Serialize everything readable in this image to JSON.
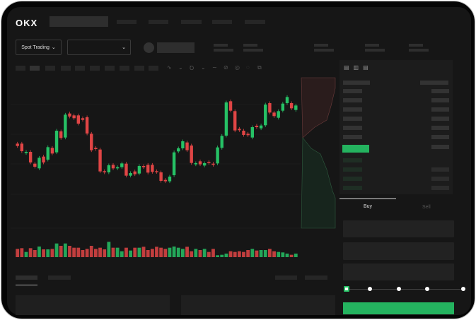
{
  "header": {
    "logo": "OKX"
  },
  "toolbar": {
    "market_selector": "Spot Trading",
    "pair_chevron": "chevron-down-icon"
  },
  "trade_panel": {
    "buy_tab": "Buy",
    "sell_tab": "Sell",
    "active_tab": "Buy",
    "leverage_steps": 5,
    "selected_step": 0
  },
  "colors": {
    "up": "#26c165",
    "down": "#e04545",
    "background": "#161616",
    "accent": "#24b35f"
  },
  "chart": {
    "candles": [
      [
        250,
        240
      ],
      [
        250,
        218
      ],
      [
        210,
        215
      ],
      [
        215,
        170
      ],
      [
        165,
        152
      ],
      [
        145,
        190
      ],
      [
        195,
        170
      ],
      [
        182,
        235
      ],
      [
        232,
        208
      ],
      [
        213,
        305
      ],
      [
        302,
        274
      ],
      [
        276,
        373
      ],
      [
        378,
        365
      ],
      [
        370,
        358
      ],
      [
        370,
        335
      ],
      [
        358,
        351
      ],
      [
        362,
        293
      ],
      [
        292,
        222
      ],
      [
        232,
        227
      ],
      [
        225,
        132
      ],
      [
        133,
        128
      ],
      [
        128,
        158
      ],
      [
        160,
        145
      ],
      [
        145,
        150
      ],
      [
        150,
        166
      ],
      [
        165,
        114
      ],
      [
        114,
        125
      ],
      [
        132,
        120
      ],
      [
        123,
        155
      ],
      [
        155,
        150
      ],
      [
        160,
        127
      ],
      [
        160,
        130
      ],
      [
        133,
        130
      ],
      [
        128,
        92
      ],
      [
        96,
        90
      ],
      [
        90,
        110
      ],
      [
        116,
        213
      ],
      [
        217,
        230
      ],
      [
        230,
        260
      ],
      [
        255,
        222
      ],
      [
        242,
        168
      ],
      [
        162,
        167
      ],
      [
        175,
        162
      ],
      [
        157,
        167
      ],
      [
        172,
        168
      ],
      [
        165,
        160
      ],
      [
        166,
        234
      ],
      [
        232,
        283
      ],
      [
        284,
        425
      ],
      [
        430,
        390
      ],
      [
        388,
        306
      ],
      [
        313,
        307
      ],
      [
        305,
        287
      ],
      [
        292,
        286
      ],
      [
        276,
        320
      ],
      [
        326,
        320
      ],
      [
        315,
        327
      ],
      [
        328,
        416
      ],
      [
        422,
        382
      ],
      [
        382,
        367
      ],
      [
        360,
        388
      ],
      [
        390,
        420
      ],
      [
        422,
        448
      ],
      [
        422,
        400
      ],
      [
        393,
        412
      ]
    ],
    "volumes": [
      35,
      38,
      22,
      38,
      30,
      45,
      33,
      33,
      35,
      58,
      48,
      58,
      48,
      40,
      40,
      30,
      35,
      48,
      35,
      40,
      33,
      65,
      40,
      40,
      25,
      40,
      28,
      40,
      40,
      44,
      30,
      35,
      44,
      40,
      35,
      40,
      45,
      40,
      35,
      44,
      25,
      35,
      30,
      35,
      22,
      35,
      8,
      10,
      15,
      25,
      22,
      25,
      22,
      30,
      35,
      28,
      30,
      30,
      35,
      25,
      22,
      20,
      15,
      10,
      15
    ]
  }
}
